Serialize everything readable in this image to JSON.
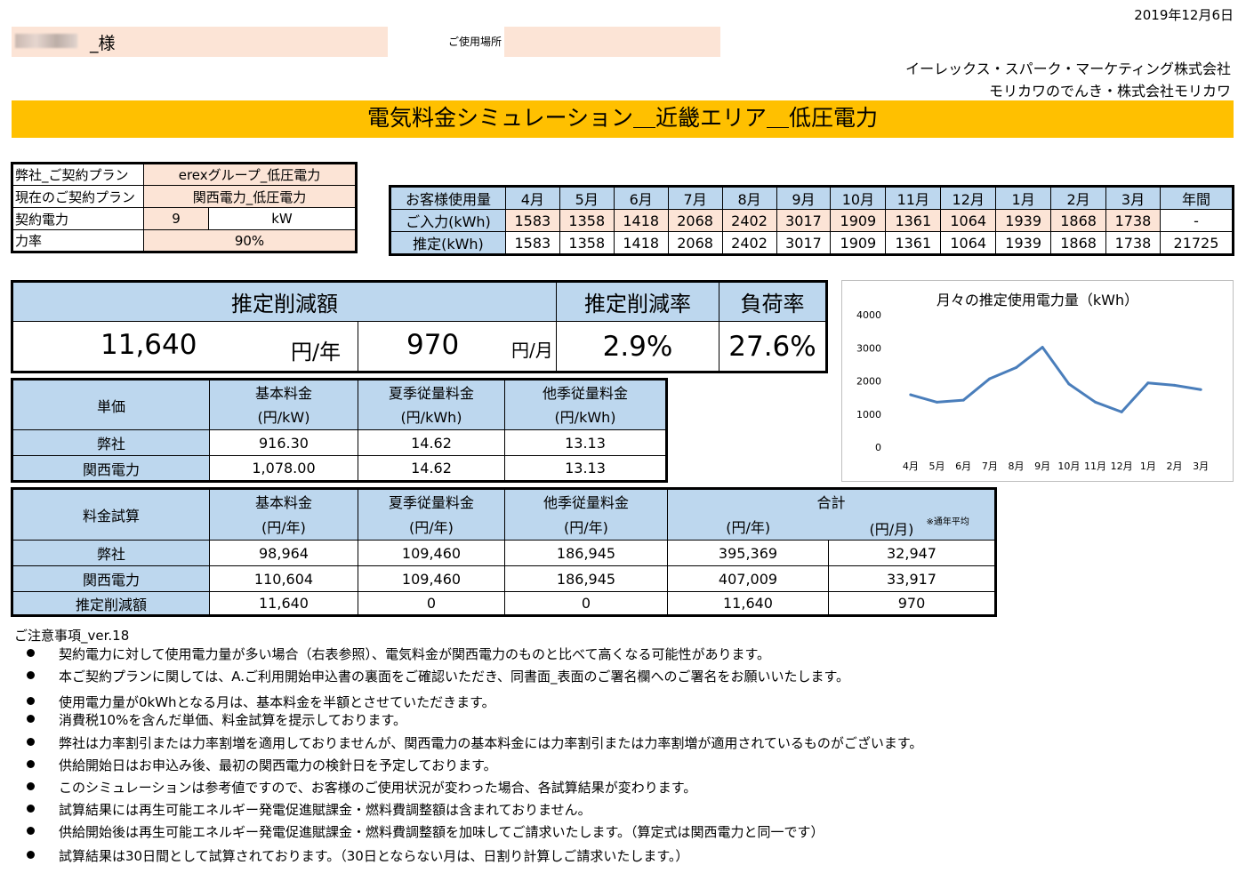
{
  "header": {
    "date": "2019年12月6日",
    "customer_suffix": "_様",
    "location_label": "ご使用場所",
    "company1": "イーレックス・スパーク・マーケティング株式会社",
    "company2": "モリカワのでんき・株式会社モリカワ",
    "title": "電気料金シミュレーション＿近畿エリア＿低圧電力"
  },
  "contract": {
    "plan_label": "弊社_ご契約プラン",
    "plan_value": "erexグループ_低圧電力",
    "current_label": "現在のご契約プラン",
    "current_value": "関西電力_低圧電力",
    "power_label": "契約電力",
    "power_value": "9",
    "power_unit": "kW",
    "pf_label": "力率",
    "pf_value": "90%"
  },
  "usage": {
    "row_labels": [
      "お客様使用量",
      "ご入力(kWh)",
      "推定(kWh)"
    ],
    "months": [
      "4月",
      "5月",
      "6月",
      "7月",
      "8月",
      "9月",
      "10月",
      "11月",
      "12月",
      "1月",
      "2月",
      "3月",
      "年間"
    ],
    "input": [
      "1583",
      "1358",
      "1418",
      "2068",
      "2402",
      "3017",
      "1909",
      "1361",
      "1064",
      "1939",
      "1868",
      "1738",
      "-"
    ],
    "estimate": [
      "1583",
      "1358",
      "1418",
      "2068",
      "2402",
      "3017",
      "1909",
      "1361",
      "1064",
      "1939",
      "1868",
      "1738",
      "21725"
    ]
  },
  "summary": {
    "reduction_label": "推定削減額",
    "rate_label": "推定削減率",
    "load_label": "負荷率",
    "yearly_value": "11,640",
    "yearly_unit": "円/年",
    "monthly_value": "970",
    "monthly_unit": "円/月",
    "rate_value": "2.9%",
    "load_value": "27.6%"
  },
  "unit_price": {
    "corner": "単価",
    "headers": [
      "基本料金",
      "夏季従量料金",
      "他季従量料金"
    ],
    "units": [
      "(円/kW)",
      "(円/kWh)",
      "(円/kWh)"
    ],
    "rows": [
      {
        "label": "弊社",
        "values": [
          "916.30",
          "14.62",
          "13.13"
        ]
      },
      {
        "label": "関西電力",
        "values": [
          "1,078.00",
          "14.62",
          "13.13"
        ]
      }
    ]
  },
  "trial": {
    "corner": "料金試算",
    "headers": [
      "基本料金",
      "夏季従量料金",
      "他季従量料金",
      "合計"
    ],
    "units": [
      "(円/年)",
      "(円/年)",
      "(円/年)",
      "(円/年)",
      "(円/月)"
    ],
    "avg_note": "※通年平均",
    "rows": [
      {
        "label": "弊社",
        "values": [
          "98,964",
          "109,460",
          "186,945",
          "395,369",
          "32,947"
        ]
      },
      {
        "label": "関西電力",
        "values": [
          "110,604",
          "109,460",
          "186,945",
          "407,009",
          "33,917"
        ]
      },
      {
        "label": "推定削減額",
        "values": [
          "11,640",
          "0",
          "0",
          "11,640",
          "970"
        ]
      }
    ]
  },
  "chart_data": {
    "type": "line",
    "title": "月々の推定使用電力量（kWh）",
    "categories": [
      "4月",
      "5月",
      "6月",
      "7月",
      "8月",
      "9月",
      "10月",
      "11月",
      "12月",
      "1月",
      "2月",
      "3月"
    ],
    "series": [
      {
        "values": [
          1583,
          1358,
          1418,
          2068,
          2402,
          3017,
          1909,
          1361,
          1064,
          1939,
          1868,
          1738
        ]
      }
    ],
    "yticks": [
      "0",
      "1000",
      "2000",
      "3000",
      "4000"
    ],
    "ylim": [
      0,
      4000
    ],
    "grid": false,
    "color": "#4a7ebb"
  },
  "notes": {
    "title": "ご注意事項_ver.18",
    "items": [
      "契約電力に対して使用電力量が多い場合（右表参照）、電気料金が関西電力のものと比べて高くなる可能性があります。",
      "本ご契約プランに関しては、A.ご利用開始申込書の裏面をご確認いただき、同書面_表面のご署名欄へのご署名をお願いいたします。",
      "使用電力量が0kWhとなる月は、基本料金を半額とさせていただきます。",
      "消費税10%を含んだ単価、料金試算を提示しております。",
      "弊社は力率割引または力率割増を適用しておりませんが、関西電力の基本料金には力率割引または力率割増が適用されているものがございます。",
      "供給開始日はお申込み後、最初の関西電力の検針日を予定しております。",
      "このシミュレーションは参考値ですので、お客様のご使用状況が変わった場合、各試算結果が変わります。",
      "試算結果には再生可能エネルギー発電促進賦課金・燃料費調整額は含まれておりません。",
      "供給開始後は再生可能エネルギー発電促進賦課金・燃料費調整額を加味してご請求いたします。（算定式は関西電力と同一です）",
      "試算結果は30日間として試算されております。（30日とならない月は、日割り計算しご請求いたします。）"
    ]
  }
}
